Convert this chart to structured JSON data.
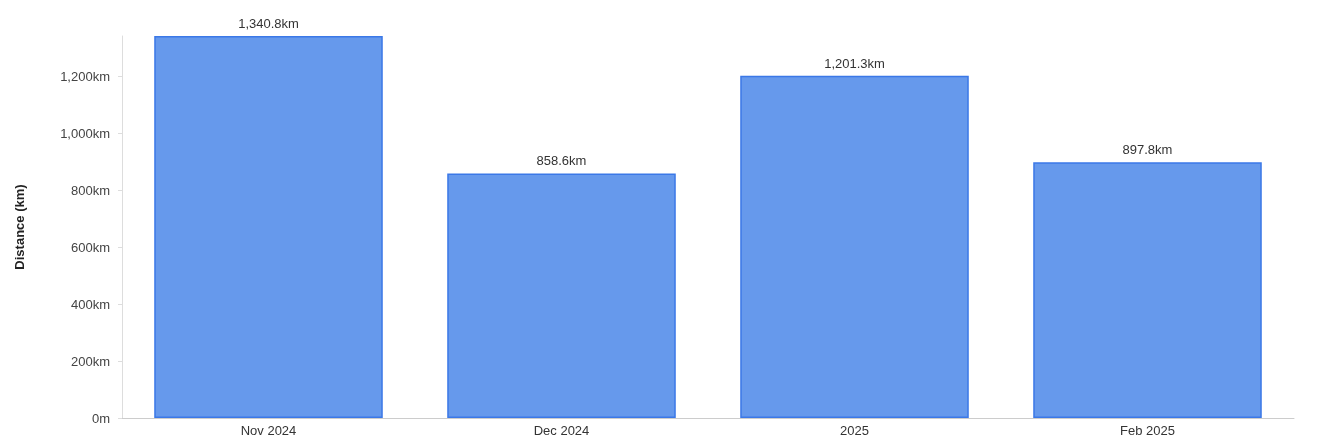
{
  "chart_data": {
    "type": "bar",
    "ylabel": "Distance (km)",
    "categories": [
      "Nov 2024",
      "Dec 2024",
      "2025",
      "Feb 2025"
    ],
    "values": [
      1340.8,
      858.6,
      1201.3,
      897.8
    ],
    "value_labels": [
      "1,340.8km",
      "858.6km",
      "1,201.3km",
      "897.8km"
    ],
    "color": "#6699ec",
    "ylim": [
      0,
      1340.8
    ],
    "yticks": [
      {
        "value": 0,
        "label": "0m"
      },
      {
        "value": 200,
        "label": "200km"
      },
      {
        "value": 400,
        "label": "400km"
      },
      {
        "value": 600,
        "label": "600km"
      },
      {
        "value": 800,
        "label": "800km"
      },
      {
        "value": 1000,
        "label": "1,000km"
      },
      {
        "value": 1200,
        "label": "1,200km"
      }
    ],
    "grid": false
  }
}
